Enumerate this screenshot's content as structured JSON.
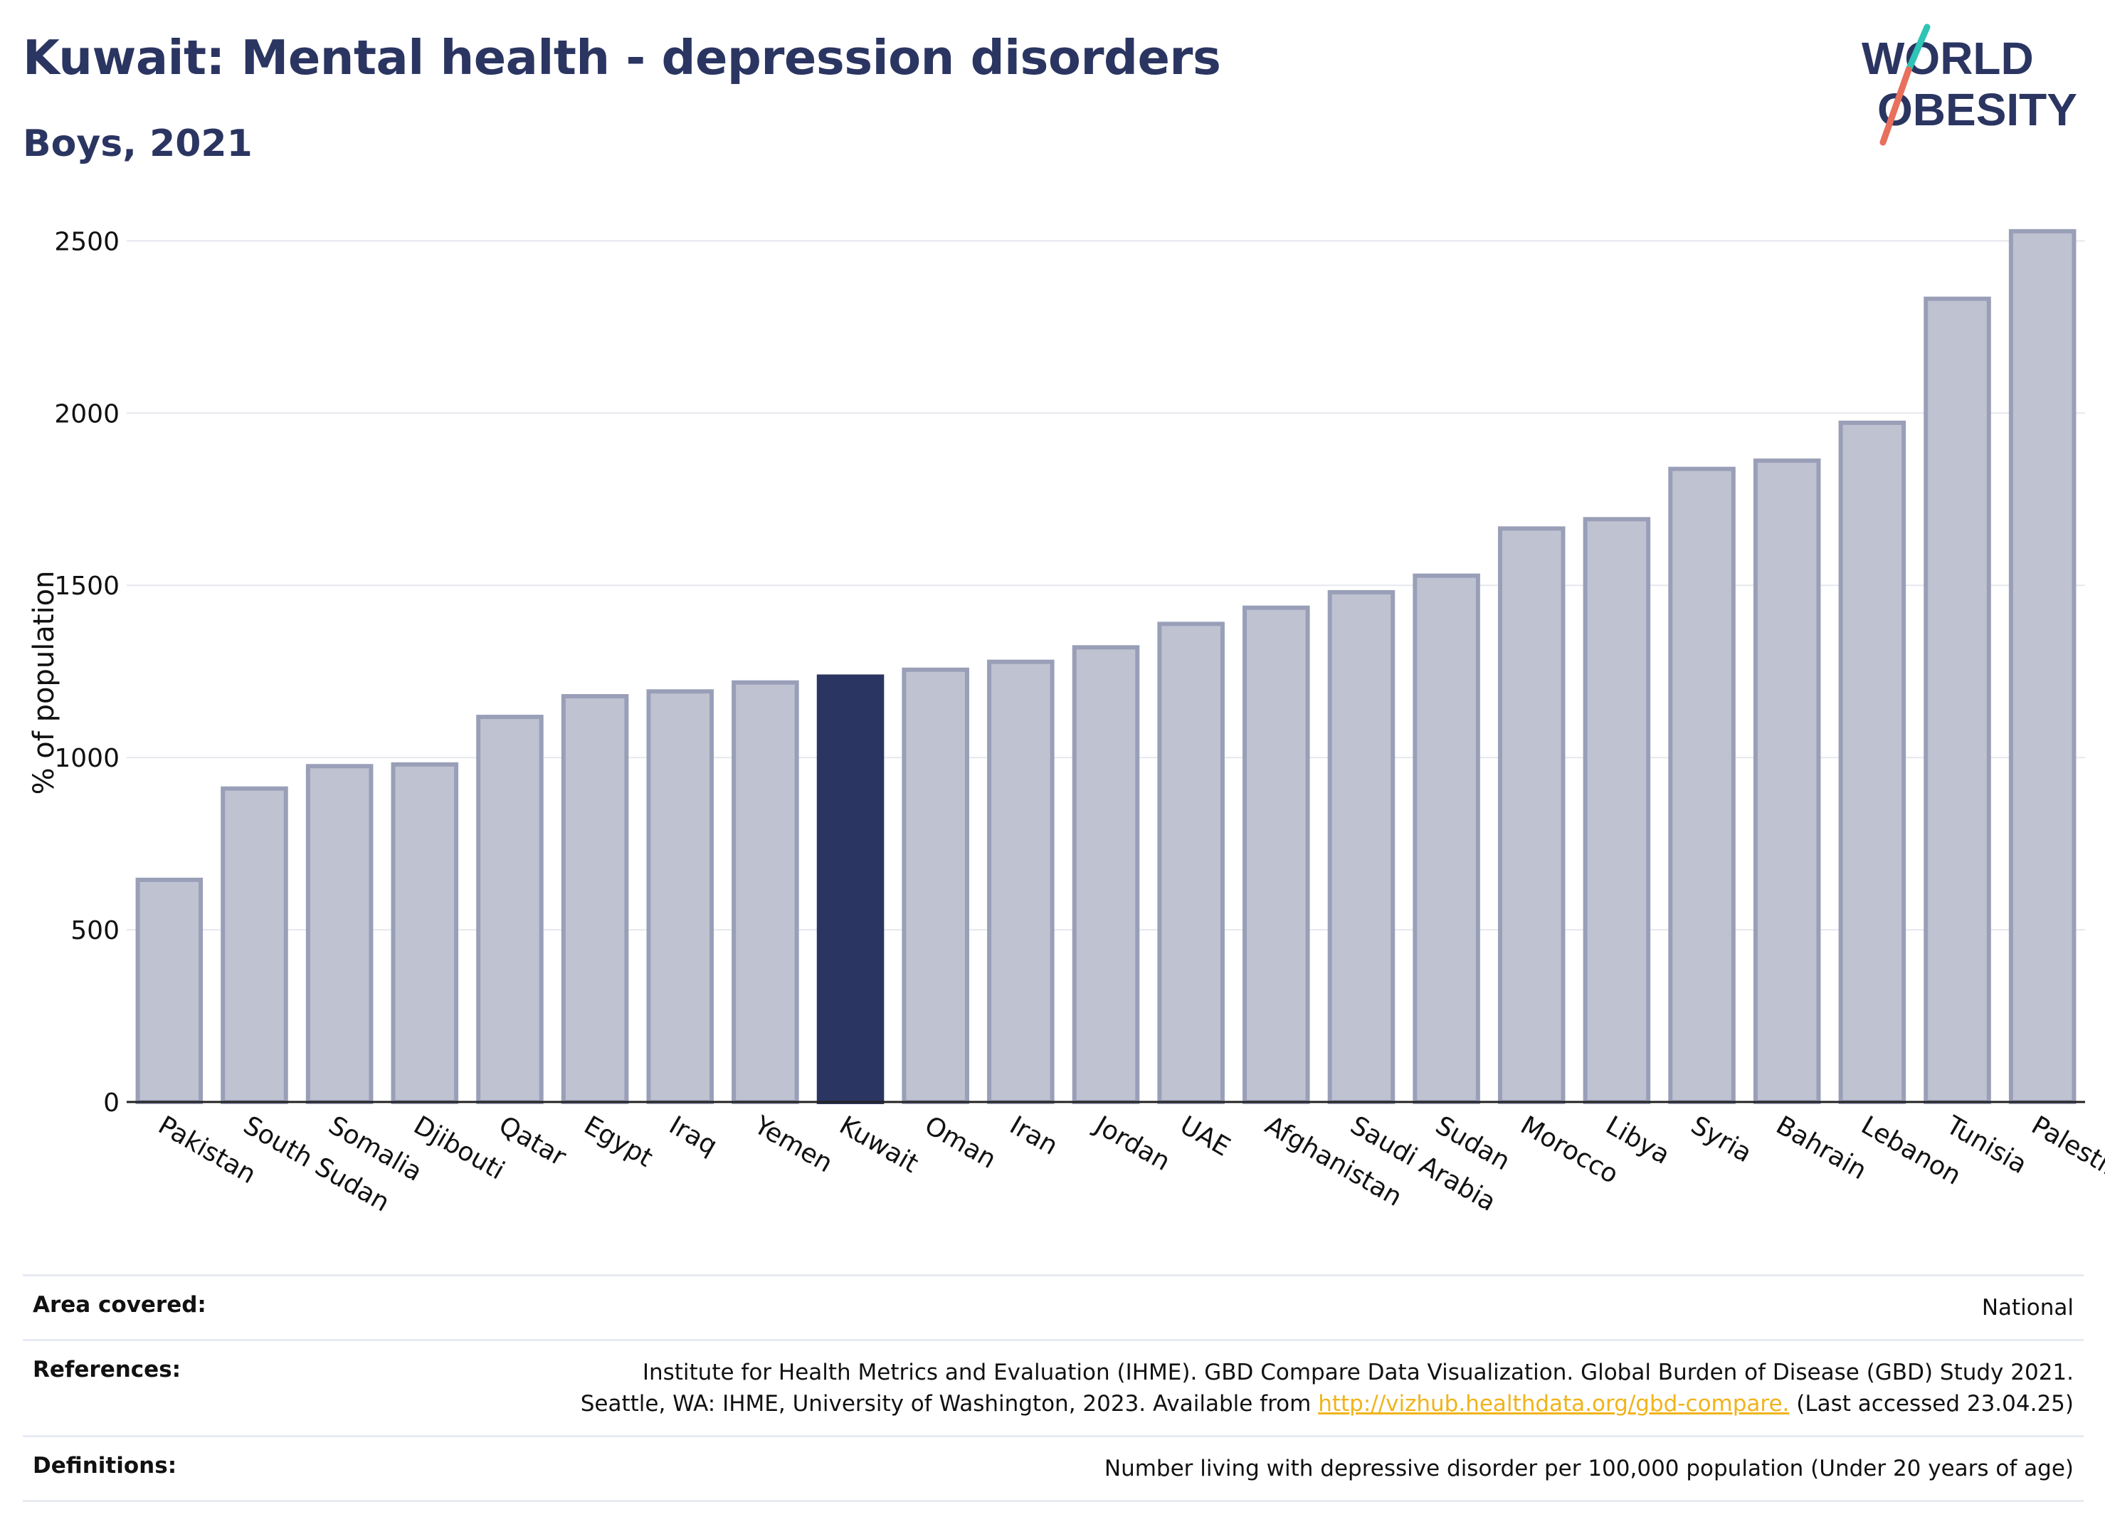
{
  "header": {
    "title": "Kuwait: Mental health - depression disorders",
    "subtitle": "Boys, 2021"
  },
  "logo": {
    "line1": "WORLD",
    "line2": "OBESITY",
    "colors": {
      "text": "#2b3561",
      "slash_top": "#2ec4b6",
      "slash_bottom": "#e8705c"
    }
  },
  "colors": {
    "bar_fill": "#bfc2d0",
    "bar_stroke": "#9a9fb8",
    "highlight": "#2b3561",
    "grid": "#e6e8ee",
    "text": "#2b3561"
  },
  "chart_data": {
    "type": "bar",
    "ylabel": "% of population",
    "ylim": [
      0,
      2600
    ],
    "yticks": [
      0,
      500,
      1000,
      1500,
      2000,
      2500
    ],
    "grid": true,
    "highlight": "Kuwait",
    "categories": [
      "Pakistan",
      "South Sudan",
      "Somalia",
      "Djibouti",
      "Qatar",
      "Egypt",
      "Iraq",
      "Yemen",
      "Kuwait",
      "Oman",
      "Iran",
      "Jordan",
      "UAE",
      "Afghanistan",
      "Saudi Arabia",
      "Sudan",
      "Morocco",
      "Libya",
      "Syria",
      "Bahrain",
      "Lebanon",
      "Tunisia",
      "Palestine"
    ],
    "values": [
      645,
      910,
      975,
      980,
      1118,
      1178,
      1192,
      1218,
      1235,
      1255,
      1278,
      1320,
      1388,
      1435,
      1480,
      1528,
      1665,
      1692,
      1838,
      1862,
      1972,
      2332,
      2528
    ]
  },
  "info": {
    "area_label": "Area covered:",
    "area_value": "National",
    "references_label": "References:",
    "references_line1": "Institute for Health Metrics and Evaluation (IHME). GBD Compare Data Visualization. Global Burden of Disease (GBD) Study 2021.",
    "references_line2_pre": "Seattle, WA: IHME, University of Washington, 2023. Available from",
    "references_link": "http://vizhub.healthdata.org/gbd-compare.",
    "references_line2_post": "(Last accessed 23.04.25)",
    "definitions_label": "Definitions:",
    "definitions_value": "Number living with depressive disorder per 100,000 population (Under 20 years of age)"
  }
}
